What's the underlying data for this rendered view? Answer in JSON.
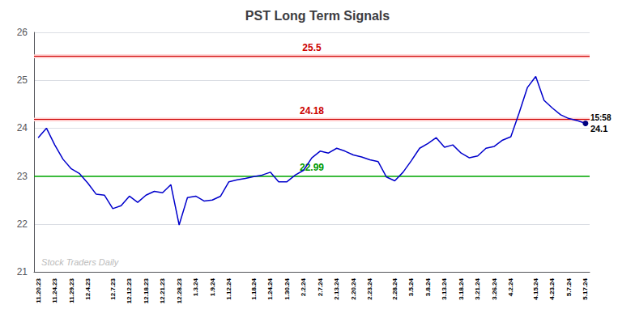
{
  "chart_data": {
    "type": "line",
    "title": "PST Long Term Signals",
    "categories": [
      "11.20.23",
      null,
      "11.24.23",
      null,
      "11.29.23",
      null,
      "12.4.23",
      null,
      null,
      "12.7.23",
      null,
      "12.12.23",
      null,
      "12.18.23",
      null,
      "12.21.23",
      null,
      "12.28.23",
      null,
      "1.3.24",
      null,
      "1.9.24",
      null,
      "1.12.24",
      null,
      null,
      "1.18.24",
      null,
      "1.24.24",
      null,
      "1.30.24",
      null,
      "2.2.24",
      null,
      "2.7.24",
      null,
      "2.13.24",
      null,
      "2.20.24",
      null,
      "2.23.24",
      null,
      null,
      "2.28.24",
      null,
      "3.5.24",
      null,
      "3.8.24",
      null,
      "3.13.24",
      null,
      "3.18.24",
      null,
      "3.21.24",
      null,
      "3.26.24",
      null,
      "4.2.24",
      null,
      null,
      "4.15.24",
      null,
      "4.23.24",
      null,
      "5.7.24",
      null,
      "5.17.24"
    ],
    "values": [
      23.8,
      24.0,
      23.65,
      23.35,
      23.15,
      23.05,
      22.85,
      22.62,
      22.6,
      22.32,
      22.38,
      22.58,
      22.45,
      22.6,
      22.68,
      22.65,
      22.82,
      21.98,
      22.55,
      22.58,
      22.48,
      22.5,
      22.58,
      22.88,
      22.92,
      22.95,
      22.99,
      23.02,
      23.08,
      22.88,
      22.88,
      23.02,
      23.12,
      23.38,
      23.52,
      23.48,
      23.58,
      23.52,
      23.44,
      23.4,
      23.34,
      23.3,
      22.98,
      22.9,
      23.08,
      23.32,
      23.58,
      23.68,
      23.8,
      23.6,
      23.65,
      23.48,
      23.38,
      23.42,
      23.58,
      23.62,
      23.75,
      23.82,
      24.32,
      24.85,
      25.08,
      24.58,
      24.42,
      24.28,
      24.2,
      24.16,
      24.1
    ],
    "color": "#0000cc",
    "ylim": [
      21,
      26
    ],
    "yticks": [
      21,
      22,
      23,
      24,
      25,
      26
    ],
    "grid": true,
    "hlines": [
      {
        "value": 25.5,
        "color": "#cc0000",
        "band_color": "#ffcccc",
        "label": "25.5",
        "label_color": "#cc0000"
      },
      {
        "value": 24.18,
        "color": "#cc0000",
        "band_color": "#ffcccc",
        "label": "24.18",
        "label_color": "#cc0000"
      },
      {
        "value": 23.0,
        "color": "#00aa00",
        "label": "22.99",
        "label_color": "#009900"
      }
    ],
    "end_point": {
      "color": "#000080"
    },
    "end_labels": [
      "15:58",
      "24.1"
    ],
    "watermark": "Stock Traders Daily"
  }
}
